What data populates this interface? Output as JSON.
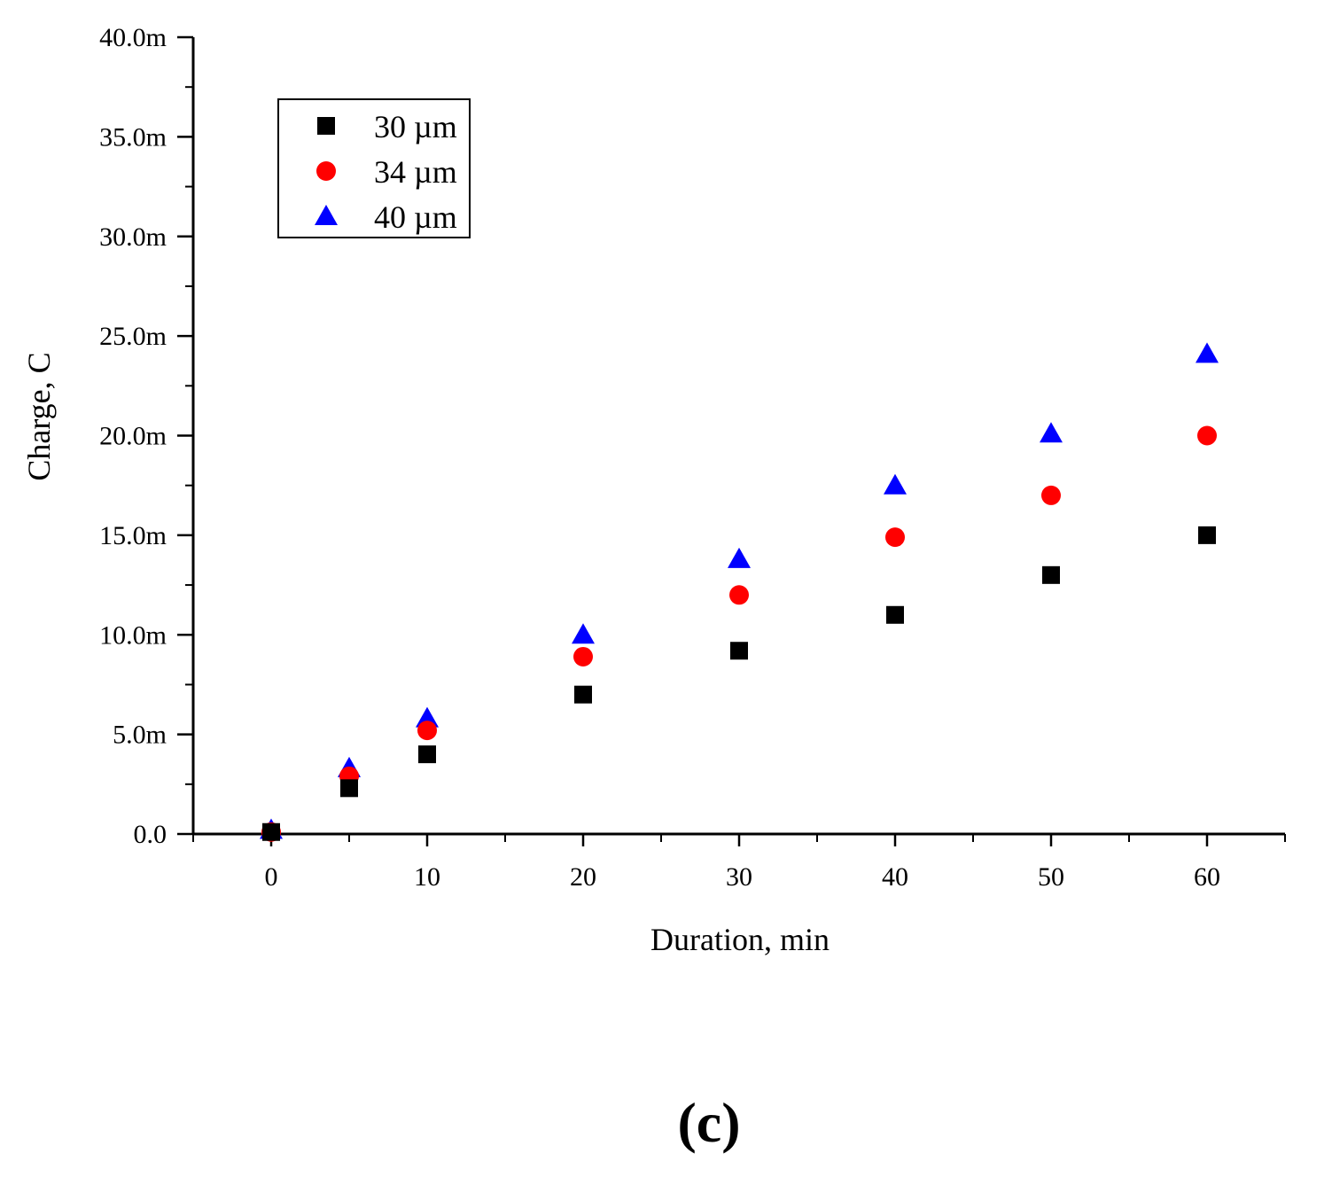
{
  "chart_data": {
    "type": "scatter",
    "title": "",
    "xlabel": "Duration, min",
    "ylabel": "Charge, C",
    "xlim": [
      -5,
      65
    ],
    "ylim": [
      0,
      40
    ],
    "x_ticks": [
      0,
      10,
      20,
      30,
      40,
      50,
      60
    ],
    "x_tick_labels": [
      "0",
      "10",
      "20",
      "30",
      "40",
      "50",
      "60"
    ],
    "y_ticks": [
      0,
      5,
      10,
      15,
      20,
      25,
      30,
      35,
      40
    ],
    "y_tick_labels": [
      "0.0",
      "5.0m",
      "10.0m",
      "15.0m",
      "20.0m",
      "25.0m",
      "30.0m",
      "35.0m",
      "40.0m"
    ],
    "y_unit_scale": "m (×10⁻³)",
    "grid": false,
    "legend_position": "top-left",
    "series": [
      {
        "name": "30 µm",
        "marker": "square",
        "color": "#000000",
        "x": [
          0,
          5,
          10,
          20,
          30,
          40,
          50,
          60
        ],
        "y": [
          0.1,
          2.3,
          4.0,
          7.0,
          9.2,
          11.0,
          13.0,
          15.0
        ]
      },
      {
        "name": "34 µm",
        "marker": "circle",
        "color": "#ff0000",
        "x": [
          0,
          5,
          10,
          20,
          30,
          40,
          50,
          60
        ],
        "y": [
          0.1,
          2.9,
          5.2,
          8.9,
          12.0,
          14.9,
          17.0,
          20.0
        ]
      },
      {
        "name": "40 µm",
        "marker": "triangle",
        "color": "#0000ff",
        "x": [
          0,
          5,
          10,
          20,
          30,
          40,
          50,
          60
        ],
        "y": [
          0.2,
          3.3,
          5.8,
          10.0,
          13.8,
          17.5,
          20.1,
          24.1
        ]
      }
    ]
  },
  "panel_label": "(c)"
}
